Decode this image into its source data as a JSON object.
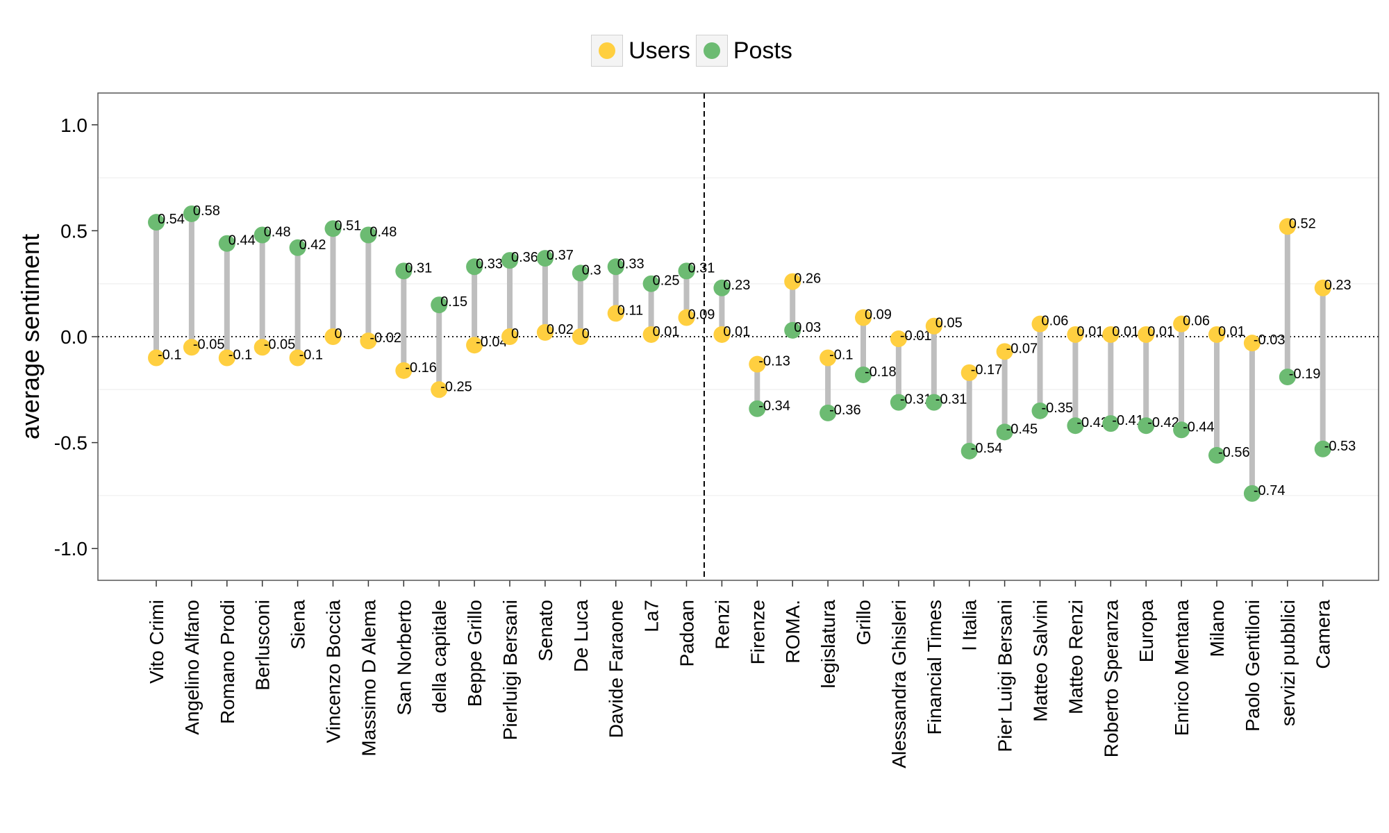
{
  "chart_data": {
    "type": "dumbbell",
    "title": "",
    "xlabel": "",
    "ylabel": "average sentiment",
    "ylim": [
      -1.15,
      1.15
    ],
    "yticks": [
      -1.0,
      -0.5,
      0.0,
      0.5,
      1.0
    ],
    "ytick_labels": [
      "-1.0",
      "-0.5",
      "0.0",
      "0.5",
      "1.0"
    ],
    "legend_position": "top",
    "divider_after_index": 15,
    "series": [
      {
        "name": "Users",
        "color": "#FFCF40"
      },
      {
        "name": "Posts",
        "color": "#6CBB72"
      }
    ],
    "categories": [
      "Vito Crimi",
      "Angelino Alfano",
      "Romano Prodi",
      "Berlusconi",
      "Siena",
      "Vincenzo Boccia",
      "Massimo D Alema",
      "San Norberto",
      "della capitale",
      "Beppe Grillo",
      "Pierluigi Bersani",
      "Senato",
      "De Luca",
      "Davide Faraone",
      "La7",
      "Padoan",
      "Renzi",
      "Firenze",
      "ROMA.",
      "legislatura",
      "Grillo",
      "Alessandra Ghisleri",
      "Financial Times",
      "l Italia",
      "Pier Luigi Bersani",
      "Matteo Salvini",
      "Matteo Renzi",
      "Roberto Speranza",
      "Europa",
      "Enrico Mentana",
      "Milano",
      "Paolo Gentiloni",
      "servizi pubblici",
      "Camera"
    ],
    "users": [
      -0.1,
      -0.05,
      -0.1,
      -0.05,
      -0.1,
      0,
      -0.02,
      -0.16,
      -0.25,
      -0.04,
      0,
      0.02,
      0,
      0.11,
      0.01,
      0.09,
      0.01,
      -0.13,
      0.26,
      -0.1,
      0.09,
      -0.01,
      0.05,
      -0.17,
      -0.07,
      0.06,
      0.01,
      0.01,
      0.01,
      0.06,
      0.01,
      -0.03,
      0.52,
      0.23
    ],
    "posts": [
      0.54,
      0.58,
      0.44,
      0.48,
      0.42,
      0.51,
      0.48,
      0.31,
      0.15,
      0.33,
      0.36,
      0.37,
      0.3,
      0.33,
      0.25,
      0.31,
      0.23,
      -0.34,
      0.03,
      -0.36,
      -0.18,
      -0.31,
      -0.31,
      -0.54,
      -0.45,
      -0.35,
      -0.42,
      -0.41,
      -0.42,
      -0.44,
      -0.56,
      -0.74,
      -0.19,
      -0.53
    ],
    "users_labels": [
      "-0.1",
      "-0.05",
      "-0.1",
      "-0.05",
      "-0.1",
      "0",
      "-0.02",
      "-0.16",
      "-0.25",
      "-0.04",
      "0",
      "0.02",
      "0",
      "0.11",
      "0.01",
      "0.09",
      "0.01",
      "-0.13",
      "0.26",
      "-0.1",
      "0.09",
      "-0.01",
      "0.05",
      "-0.17",
      "-0.07",
      "0.06",
      "0.01",
      "0.01",
      "0.01",
      "0.06",
      "0.01",
      "-0.03",
      "0.52",
      "0.23"
    ],
    "posts_labels": [
      "0.54",
      "0.58",
      "0.44",
      "0.48",
      "0.42",
      "0.51",
      "0.48",
      "0.31",
      "0.15",
      "0.33",
      "0.36",
      "0.37",
      "0.3",
      "0.33",
      "0.25",
      "0.31",
      "0.23",
      "-0.34",
      "0.03",
      "-0.36",
      "-0.18",
      "-0.31",
      "-0.31",
      "-0.54",
      "-0.45",
      "-0.35",
      "-0.42",
      "-0.41",
      "-0.42",
      "-0.44",
      "-0.56",
      "-0.74",
      "-0.19",
      "-0.53"
    ],
    "connector_color": "#BEBEBE",
    "grid": true
  }
}
